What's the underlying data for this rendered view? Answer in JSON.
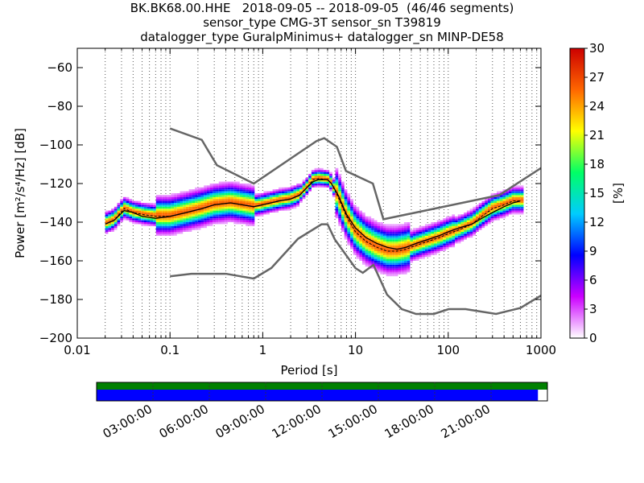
{
  "title_lines": [
    "BK.BK68.00.HHE   2018-09-05 -- 2018-09-05  (46/46 segments)",
    "sensor_type CMG-3T sensor_sn T39819",
    "datalogger_type GuralpMinimus+ datalogger_sn MINP-DE58"
  ],
  "chart_data": [
    {
      "type": "heatmap",
      "xlabel": "Period [s]",
      "ylabel": "Power [m²/s⁴/Hz] [dB]",
      "xscale": "log",
      "xlim": [
        0.01,
        1000
      ],
      "ylim": [
        -200,
        -50
      ],
      "xticks": [
        {
          "value": 0.01,
          "label": "0.01"
        },
        {
          "value": 0.1,
          "label": "0.1"
        },
        {
          "value": 1,
          "label": "1"
        },
        {
          "value": 10,
          "label": "10"
        },
        {
          "value": 100,
          "label": "100"
        },
        {
          "value": 1000,
          "label": "1000"
        }
      ],
      "yticks": [
        {
          "value": -60,
          "label": "−60"
        },
        {
          "value": -80,
          "label": "−80"
        },
        {
          "value": -100,
          "label": "−100"
        },
        {
          "value": -120,
          "label": "−120"
        },
        {
          "value": -140,
          "label": "−140"
        },
        {
          "value": -160,
          "label": "−160"
        },
        {
          "value": -180,
          "label": "−180"
        },
        {
          "value": -200,
          "label": "−200"
        }
      ],
      "grid": "dotted vertical",
      "colorbar": {
        "label": "[%]",
        "range": [
          0,
          30
        ],
        "ticks": [
          "0",
          "3",
          "6",
          "9",
          "12",
          "15",
          "18",
          "21",
          "24",
          "27",
          "30"
        ],
        "colormap": [
          "#ffffff",
          "#cc00ff",
          "#0000ff",
          "#00ccff",
          "#00ff66",
          "#ffff00",
          "#ff6600",
          "#cc0000"
        ]
      },
      "noise_models": [
        {
          "name": "NHNM",
          "color": "#666666",
          "points": [
            [
              0.1,
              -91.5
            ],
            [
              0.22,
              -97.4
            ],
            [
              0.32,
              -110.5
            ],
            [
              0.8,
              -120
            ],
            [
              3.8,
              -98
            ],
            [
              4.6,
              -96.5
            ],
            [
              6.3,
              -101
            ],
            [
              7.9,
              -113.5
            ],
            [
              15.4,
              -120
            ],
            [
              20,
              -138.5
            ],
            [
              354.8,
              -126
            ],
            [
              1000,
              -112
            ]
          ]
        },
        {
          "name": "NLNM",
          "color": "#666666",
          "points": [
            [
              0.1,
              -168
            ],
            [
              0.17,
              -166.7
            ],
            [
              0.4,
              -166.7
            ],
            [
              0.8,
              -169.2
            ],
            [
              1.24,
              -163.7
            ],
            [
              2.4,
              -148.6
            ],
            [
              4.3,
              -141.1
            ],
            [
              5,
              -141.1
            ],
            [
              6,
              -149
            ],
            [
              10,
              -163.8
            ],
            [
              12,
              -166.2
            ],
            [
              15.6,
              -162.1
            ],
            [
              21.9,
              -177.5
            ],
            [
              31.6,
              -185
            ],
            [
              45,
              -187.5
            ],
            [
              70,
              -187.5
            ],
            [
              101,
              -185
            ],
            [
              154,
              -185
            ],
            [
              328,
              -187.5
            ],
            [
              600,
              -184.4
            ],
            [
              1000,
              -178
            ]
          ]
        }
      ],
      "mean_curve": {
        "name": "mean",
        "color": "#000000",
        "points": [
          [
            0.02,
            -141
          ],
          [
            0.025,
            -139
          ],
          [
            0.032,
            -134
          ],
          [
            0.04,
            -135
          ],
          [
            0.05,
            -137
          ],
          [
            0.07,
            -138
          ],
          [
            0.1,
            -137
          ],
          [
            0.15,
            -135
          ],
          [
            0.22,
            -133
          ],
          [
            0.3,
            -131
          ],
          [
            0.45,
            -130
          ],
          [
            0.6,
            -131
          ],
          [
            0.8,
            -132
          ],
          [
            1,
            -131
          ],
          [
            1.5,
            -129
          ],
          [
            2,
            -128
          ],
          [
            2.5,
            -126
          ],
          [
            3,
            -122
          ],
          [
            3.5,
            -119
          ],
          [
            4,
            -118
          ],
          [
            5,
            -118
          ],
          [
            5.5,
            -120
          ],
          [
            6.5,
            -126
          ],
          [
            8,
            -136
          ],
          [
            10,
            -143
          ],
          [
            13,
            -148
          ],
          [
            17,
            -151
          ],
          [
            22,
            -153
          ],
          [
            28,
            -154
          ],
          [
            35,
            -153
          ],
          [
            45,
            -151
          ],
          [
            60,
            -149
          ],
          [
            80,
            -147
          ],
          [
            100,
            -145
          ],
          [
            130,
            -143
          ],
          [
            180,
            -141
          ],
          [
            230,
            -138
          ],
          [
            300,
            -135
          ],
          [
            400,
            -132
          ],
          [
            500,
            -130
          ],
          [
            600,
            -129
          ]
        ]
      },
      "mode_curve": {
        "name": "mode",
        "color": "#000000",
        "points": [
          [
            0.02,
            -141
          ],
          [
            0.025,
            -139
          ],
          [
            0.032,
            -133
          ],
          [
            0.04,
            -135
          ],
          [
            0.05,
            -136
          ],
          [
            0.07,
            -137
          ],
          [
            0.1,
            -137
          ],
          [
            0.15,
            -135
          ],
          [
            0.22,
            -133
          ],
          [
            0.3,
            -131
          ],
          [
            0.45,
            -130
          ],
          [
            0.6,
            -131
          ],
          [
            0.8,
            -132
          ],
          [
            1,
            -131
          ],
          [
            1.5,
            -129
          ],
          [
            2,
            -128
          ],
          [
            2.5,
            -126
          ],
          [
            3,
            -122
          ],
          [
            3.5,
            -118
          ],
          [
            4,
            -117.5
          ],
          [
            5,
            -118
          ],
          [
            5.5,
            -120
          ],
          [
            6.5,
            -127
          ],
          [
            8,
            -137
          ],
          [
            10,
            -145
          ],
          [
            13,
            -150
          ],
          [
            17,
            -153
          ],
          [
            22,
            -155
          ],
          [
            28,
            -155
          ],
          [
            35,
            -154
          ],
          [
            45,
            -152
          ],
          [
            60,
            -150
          ],
          [
            80,
            -148
          ],
          [
            100,
            -146
          ],
          [
            130,
            -144
          ],
          [
            180,
            -141
          ],
          [
            230,
            -137
          ],
          [
            300,
            -133
          ],
          [
            400,
            -131
          ],
          [
            500,
            -129
          ],
          [
            600,
            -129
          ]
        ]
      }
    },
    {
      "type": "coverage",
      "time_ticks": [
        "03:00:00",
        "06:00:00",
        "09:00:00",
        "12:00:00",
        "15:00:00",
        "18:00:00",
        "21:00:00"
      ],
      "bars": [
        {
          "name": "data coverage",
          "color": "#008000",
          "start_fraction": 0.0,
          "end_fraction": 1.0
        },
        {
          "name": "psd coverage",
          "color": "#0000ff",
          "start_fraction": 0.0,
          "end_fraction": 0.979
        }
      ]
    }
  ]
}
